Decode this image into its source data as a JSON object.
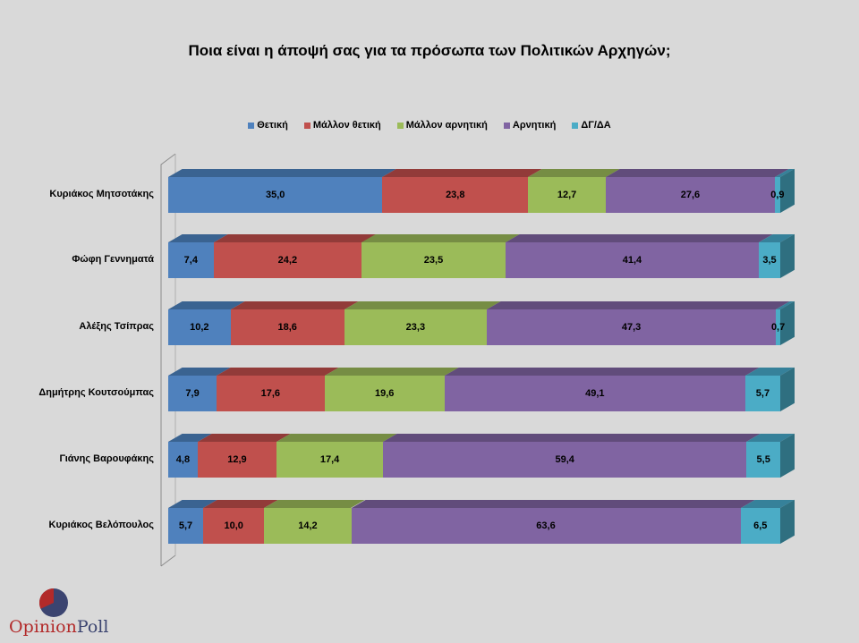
{
  "chart_data": {
    "type": "bar",
    "orientation": "horizontal",
    "stacked": "100%",
    "style": "3d",
    "title": "Ποια είναι η άποψή σας για τα πρόσωπα των Πολιτικών Αρχηγών;",
    "xlabel": "",
    "ylabel": "",
    "grid": false,
    "legend_position": "top",
    "categories": [
      "Κυριάκος Μητσοτάκης",
      "Φώφη Γεννηματά",
      "Αλέξης Τσίπρας",
      "Δημήτρης Κουτσούμπας",
      "Γιάνης Βαρουφάκης",
      "Κυριάκος Βελόπουλος"
    ],
    "series": [
      {
        "name": "Θετική",
        "color": "#4f81bd",
        "values": [
          35.0,
          7.4,
          10.2,
          7.9,
          4.8,
          5.7
        ],
        "labels": [
          "35,0",
          "7,4",
          "10,2",
          "7,9",
          "4,8",
          "5,7"
        ]
      },
      {
        "name": "Μάλλον θετική",
        "color": "#c0504d",
        "values": [
          23.8,
          24.2,
          18.6,
          17.6,
          12.9,
          10.0
        ],
        "labels": [
          "23,8",
          "24,2",
          "18,6",
          "17,6",
          "12,9",
          "10,0"
        ]
      },
      {
        "name": "Μάλλον αρνητική",
        "color": "#9bbb59",
        "values": [
          12.7,
          23.5,
          23.3,
          19.6,
          17.4,
          14.2
        ],
        "labels": [
          "12,7",
          "23,5",
          "23,3",
          "19,6",
          "17,4",
          "14,2"
        ]
      },
      {
        "name": "Αρνητική",
        "color": "#8064a2",
        "values": [
          27.6,
          41.4,
          47.3,
          49.1,
          59.4,
          63.6
        ],
        "labels": [
          "27,6",
          "41,4",
          "47,3",
          "49,1",
          "59,4",
          "63,6"
        ]
      },
      {
        "name": "ΔΓ/ΔΑ",
        "color": "#4bacc6",
        "values": [
          0.9,
          3.5,
          0.7,
          5.7,
          5.5,
          6.5
        ],
        "labels": [
          "0,9",
          "3,5",
          "0,7",
          "5,7",
          "5,5",
          "6,5"
        ]
      }
    ]
  },
  "colors": {
    "top": [
      "#3a6391",
      "#923b39",
      "#768d44",
      "#614c7b",
      "#36819a"
    ],
    "side": "#2f6f80"
  },
  "logo": {
    "part1": "Opinion",
    "part2": "Poll"
  }
}
